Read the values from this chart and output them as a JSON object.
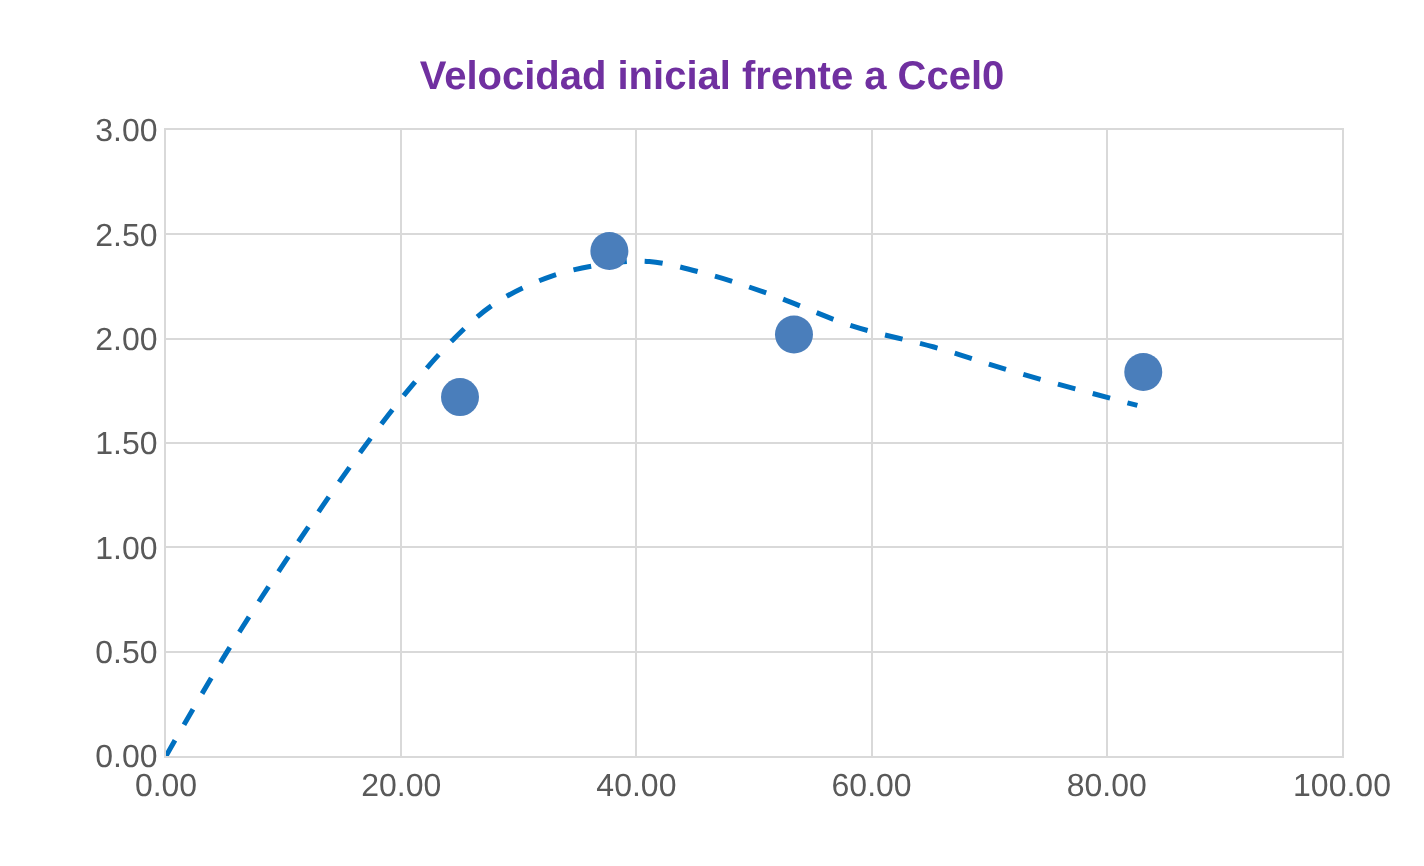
{
  "chart_data": {
    "type": "scatter",
    "title": "Velocidad inicial frente a Ccel0",
    "series": [
      {
        "color": "#4a7ebb",
        "marker": "circle",
        "x": [
          25,
          37.7,
          53.4,
          83.1
        ],
        "values": [
          1.72,
          2.42,
          2.02,
          1.84
        ]
      },
      {
        "type": "line",
        "color": "#0070c0",
        "marker": "none",
        "line_style": "dashed",
        "x": [
          0,
          5.2,
          10.7,
          16.2,
          20.4,
          24.5,
          28,
          32.8,
          37.7,
          41.1,
          46,
          51.5,
          58.4,
          65.3,
          72.2,
          82.6
        ],
        "values": [
          0,
          0.5,
          0.98,
          1.43,
          1.74,
          2.0,
          2.17,
          2.3,
          2.36,
          2.37,
          2.31,
          2.21,
          2.06,
          1.96,
          1.84,
          1.68
        ]
      }
    ],
    "xlim": [
      0,
      100
    ],
    "xticks": [
      {
        "value": 0,
        "label": "0.00"
      },
      {
        "value": 20,
        "label": "20.00"
      },
      {
        "value": 40,
        "label": "40.00"
      },
      {
        "value": 60,
        "label": "60.00"
      },
      {
        "value": 80,
        "label": "80.00"
      },
      {
        "value": 100,
        "label": "100.00"
      }
    ],
    "ylim": [
      0,
      3
    ],
    "yticks": [
      {
        "value": 0,
        "label": "0.00"
      },
      {
        "value": 0.5,
        "label": "0.50"
      },
      {
        "value": 1,
        "label": "1.00"
      },
      {
        "value": 1.5,
        "label": "1.50"
      },
      {
        "value": 2,
        "label": "2.00"
      },
      {
        "value": 2.5,
        "label": "2.50"
      },
      {
        "value": 3,
        "label": "3.00"
      }
    ],
    "grid": true
  }
}
